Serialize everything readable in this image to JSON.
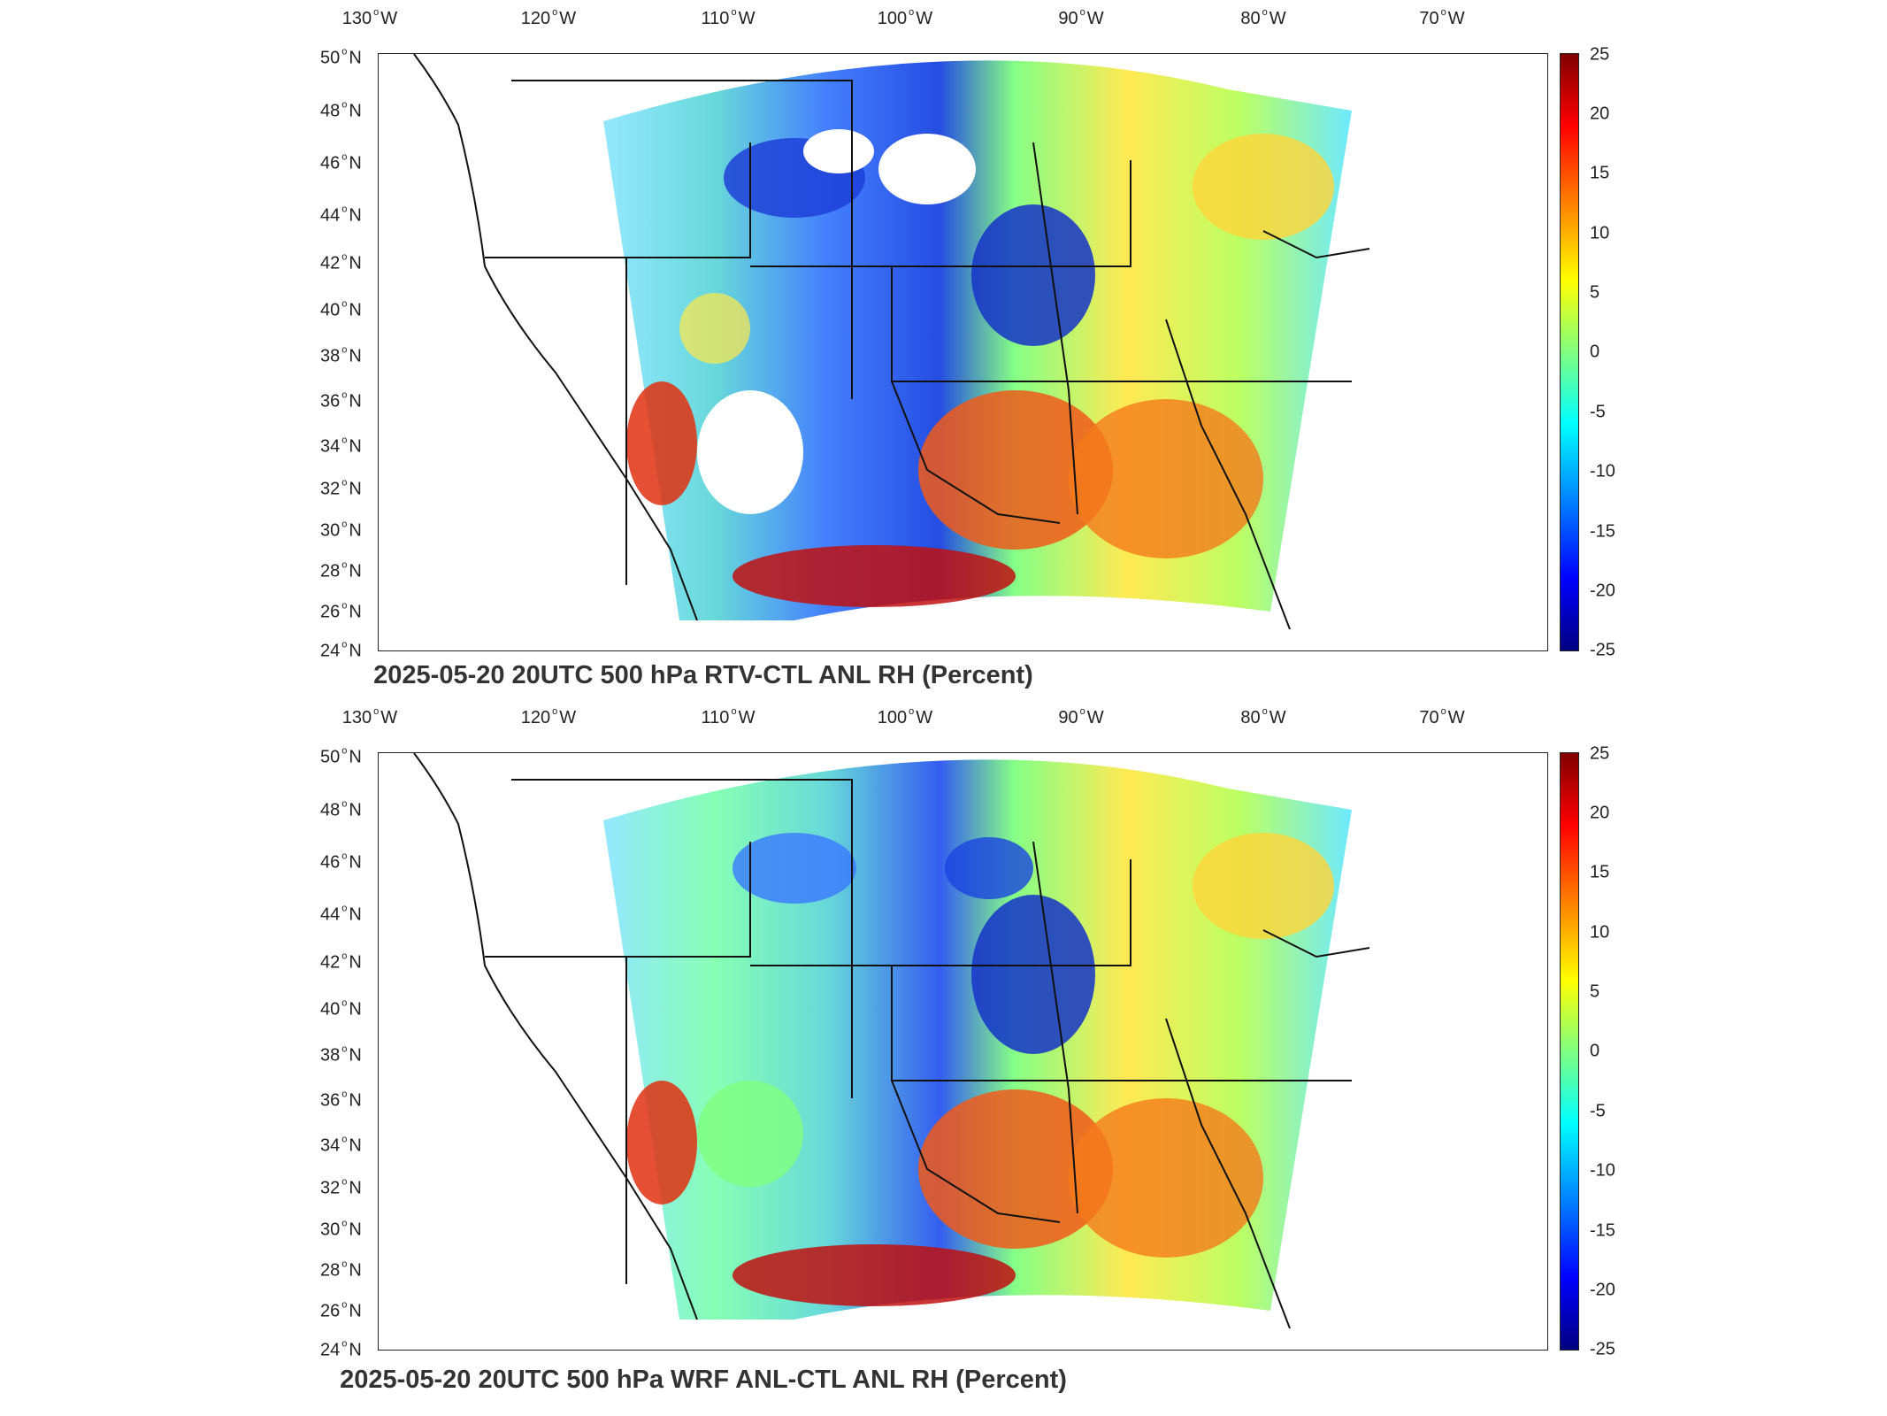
{
  "longitude_labels": [
    "130",
    "120",
    "110",
    "100",
    "90",
    "80",
    "70"
  ],
  "longitude_suffix": "W",
  "latitude_labels": [
    "50",
    "48",
    "46",
    "44",
    "42",
    "40",
    "38",
    "36",
    "34",
    "32",
    "30",
    "28",
    "26",
    "24"
  ],
  "latitude_suffix": "N",
  "colorbar": {
    "ticks": [
      "25",
      "20",
      "15",
      "10",
      "5",
      "0",
      "-5",
      "-10",
      "-15",
      "-20",
      "-25"
    ],
    "colors": {
      "max": "#800000",
      "mid": "#80ff80",
      "min": "#000080"
    },
    "colormap": "jet"
  },
  "panels": [
    {
      "title": "2025-05-20 20UTC 500 hPa RTV-CTL ANL RH (Percent)"
    },
    {
      "title": "2025-05-20 20UTC 500 hPa WRF ANL-CTL ANL RH (Percent)"
    }
  ]
}
